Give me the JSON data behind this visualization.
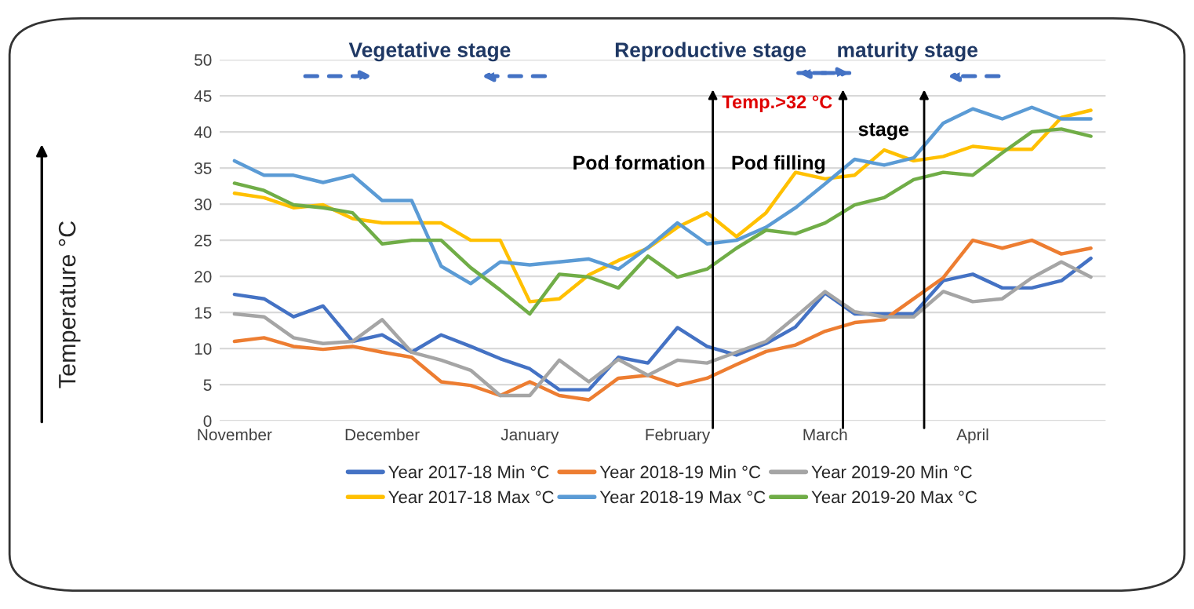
{
  "chart_data": {
    "type": "line",
    "categories": [
      "November",
      null,
      null,
      null,
      null,
      "December",
      null,
      null,
      null,
      null,
      "January",
      null,
      null,
      null,
      null,
      "February",
      null,
      null,
      null,
      null,
      "March",
      null,
      null,
      null,
      null,
      "April",
      null,
      null,
      null,
      null
    ],
    "ylabel": "Temperature °C",
    "ylim": [
      0,
      50
    ],
    "yticks": [
      0,
      5,
      10,
      15,
      20,
      25,
      30,
      35,
      40,
      45,
      50
    ],
    "grid": "y",
    "legend": "bottom",
    "line_style": "solid",
    "marker": "none",
    "annotations": [
      "Vegetative stage",
      "Reproductive stage",
      "maturity stage",
      "Temp.>32 °C",
      "Pod formation",
      "Pod filling",
      "stage"
    ],
    "series": [
      {
        "name": "Year 2017-18 Min °C",
        "color": "#4472c4",
        "values": [
          17.5,
          16.9,
          14.4,
          15.9,
          11.0,
          11.9,
          9.5,
          11.9,
          10.3,
          8.6,
          7.2,
          4.3,
          4.3,
          8.8,
          8.0,
          12.9,
          10.3,
          9.1,
          10.7,
          13.0,
          17.7,
          14.8,
          14.8,
          14.8,
          19.4,
          20.3,
          18.4,
          18.4,
          19.4,
          22.5
        ]
      },
      {
        "name": "Year 2017-18 Max °C",
        "color": "#ffc000",
        "values": [
          31.5,
          30.9,
          29.5,
          29.9,
          28.0,
          27.4,
          27.4,
          27.4,
          25.0,
          25.0,
          16.5,
          16.9,
          20.2,
          22.2,
          23.9,
          26.8,
          28.8,
          25.5,
          28.8,
          34.4,
          33.5,
          34.0,
          37.5,
          36.0,
          36.6,
          38.0,
          37.6,
          37.6,
          42.0,
          43.0
        ]
      },
      {
        "name": "Year 2018-19 Min °C",
        "color": "#ed7d31",
        "values": [
          11.0,
          11.5,
          10.3,
          9.9,
          10.3,
          9.5,
          8.8,
          5.4,
          4.9,
          3.5,
          5.4,
          3.5,
          2.9,
          5.9,
          6.3,
          4.9,
          5.9,
          7.8,
          9.6,
          10.5,
          12.4,
          13.6,
          14.0,
          16.9,
          19.8,
          25.0,
          23.9,
          25.0,
          23.1,
          23.9
        ]
      },
      {
        "name": "Year 2018-19 Max °C",
        "color": "#5b9bd5",
        "values": [
          36.0,
          34.0,
          34.0,
          33.0,
          34.0,
          30.5,
          30.5,
          21.4,
          19.0,
          22.0,
          21.6,
          22.0,
          22.4,
          21.0,
          24.0,
          27.4,
          24.5,
          25.0,
          26.8,
          29.5,
          32.8,
          36.2,
          35.4,
          36.4,
          41.2,
          43.2,
          41.8,
          43.4,
          41.8,
          41.8
        ]
      },
      {
        "name": "Year 2019-20 Min °C",
        "color": "#a5a5a5",
        "values": [
          14.8,
          14.4,
          11.5,
          10.7,
          11.0,
          14.0,
          9.5,
          8.4,
          7.0,
          3.5,
          3.5,
          8.4,
          5.4,
          8.5,
          6.3,
          8.4,
          8.0,
          9.5,
          11.0,
          14.4,
          17.9,
          15.1,
          14.4,
          14.4,
          17.9,
          16.5,
          16.9,
          19.8,
          22.0,
          19.9
        ]
      },
      {
        "name": "Year 2019-20 Max °C",
        "color": "#70ad47",
        "values": [
          32.9,
          31.9,
          29.9,
          29.5,
          28.8,
          24.5,
          25.0,
          25.0,
          21.2,
          18.1,
          14.8,
          20.3,
          19.9,
          18.4,
          22.8,
          19.9,
          21.0,
          23.9,
          26.4,
          25.9,
          27.4,
          29.9,
          30.9,
          33.4,
          34.4,
          34.0,
          37.1,
          40.0,
          40.4,
          39.4
        ]
      }
    ]
  }
}
